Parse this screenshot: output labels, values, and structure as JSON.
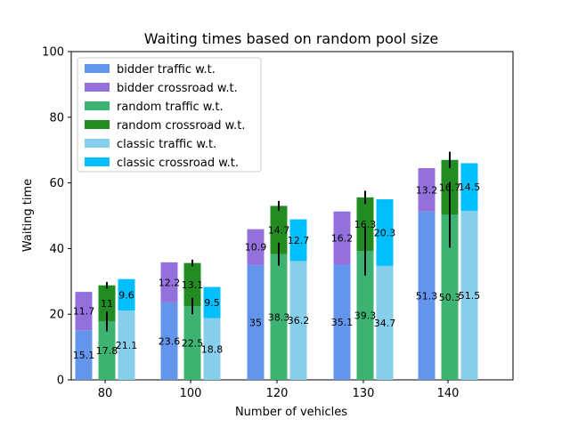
{
  "chart_data": {
    "type": "bar",
    "title": "Waiting times based on random pool size",
    "xlabel": "Number of vehicles",
    "ylabel": "Waiting time",
    "ylim": [
      0,
      100
    ],
    "yticks": [
      "0",
      "20",
      "40",
      "60",
      "80",
      "100"
    ],
    "categories": [
      "80",
      "100",
      "120",
      "130",
      "140"
    ],
    "legend_position": "top-left",
    "groups": [
      {
        "name": "bidder",
        "traffic": [
          15.1,
          23.6,
          35,
          35.1,
          51.3
        ],
        "crossroad": [
          11.7,
          12.2,
          10.9,
          16.2,
          13.2
        ],
        "error": null,
        "traffic_labels": [
          "15.1",
          "23.6",
          "35",
          "35.1",
          "51.3"
        ],
        "crossroad_labels": [
          "11.7",
          "12.2",
          "10.9",
          "16.2",
          "13.2"
        ]
      },
      {
        "name": "random",
        "traffic": [
          17.8,
          22.5,
          38.3,
          39.3,
          50.3
        ],
        "crossroad": [
          11,
          13.1,
          14.7,
          16.3,
          16.7
        ],
        "traffic_error": [
          3,
          2.5,
          3.5,
          7.5,
          10
        ],
        "crossroad_error": [
          1,
          1,
          1.5,
          2,
          2.5
        ],
        "traffic_labels": [
          "17.8",
          "22.5",
          "38.3",
          "39.3",
          "50.3"
        ],
        "crossroad_labels": [
          "11",
          "13.1",
          "14.7",
          "16.3",
          "16.7"
        ]
      },
      {
        "name": "classic",
        "traffic": [
          21.1,
          18.8,
          36.2,
          34.7,
          51.5
        ],
        "crossroad": [
          9.6,
          9.5,
          12.7,
          20.3,
          14.5
        ],
        "error": null,
        "traffic_labels": [
          "21.1",
          "18.8",
          "36.2",
          "34.7",
          "51.5"
        ],
        "crossroad_labels": [
          "9.6",
          "9.5",
          "12.7",
          "20.3",
          "14.5"
        ]
      }
    ],
    "legend": [
      {
        "label": "bidder traffic w.t.",
        "color": "#6495ed"
      },
      {
        "label": "bidder crossroad w.t.",
        "color": "#9370db"
      },
      {
        "label": "random traffic w.t.",
        "color": "#3cb371"
      },
      {
        "label": "random crossroad w.t.",
        "color": "#228b22"
      },
      {
        "label": "classic traffic w.t.",
        "color": "#87ceeb"
      },
      {
        "label": "classic crossroad w.t.",
        "color": "#00bfff"
      }
    ],
    "colors": {
      "bidder_traffic": "#6495ed",
      "bidder_crossroad": "#9370db",
      "random_traffic": "#3cb371",
      "random_crossroad": "#228b22",
      "classic_traffic": "#87ceeb",
      "classic_crossroad": "#00bfff"
    }
  }
}
